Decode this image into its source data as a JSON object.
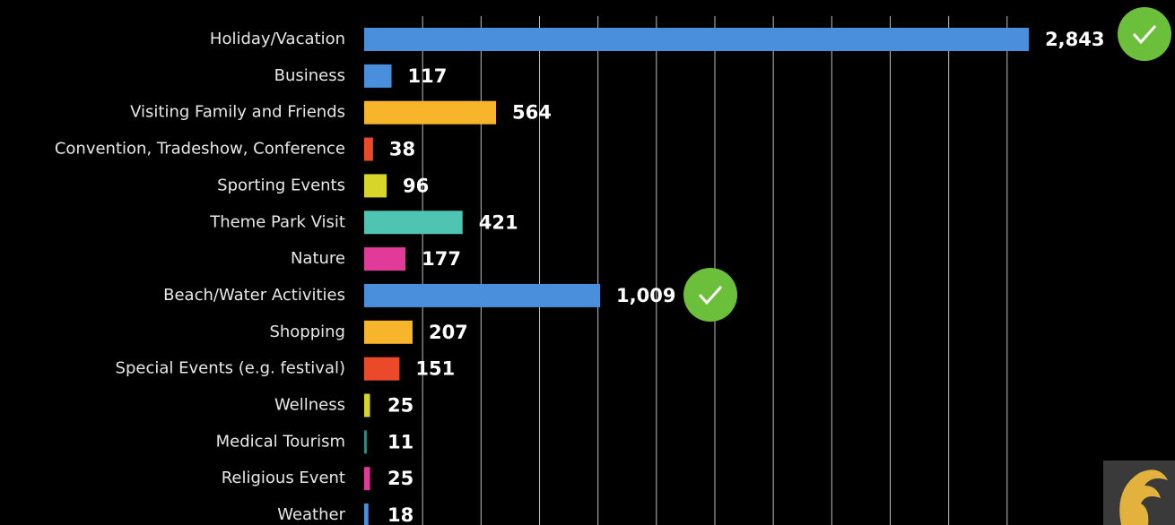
{
  "chart_data": {
    "type": "barh",
    "categories": [
      "Holiday/Vacation",
      "Business",
      "Visiting Family and Friends",
      "Convention, Tradeshow, Conference",
      "Sporting Events",
      "Theme Park Visit",
      "Nature",
      "Beach/Water Activities",
      "Shopping",
      "Special Events (e.g. festival)",
      "Wellness",
      "Medical Tourism",
      "Religious Event",
      "Weather"
    ],
    "values": [
      2843,
      117,
      564,
      38,
      96,
      421,
      177,
      1009,
      207,
      151,
      25,
      11,
      25,
      18
    ],
    "value_labels": [
      "2,843",
      "117",
      "564",
      "38",
      "96",
      "421",
      "177",
      "1,009",
      "207",
      "151",
      "25",
      "11",
      "25",
      "18"
    ],
    "colors": [
      "#4a8fdc",
      "#4a8fdc",
      "#f7b52c",
      "#ea4a2a",
      "#d7d52a",
      "#4fc4b2",
      "#e23a98",
      "#4a8fdc",
      "#f7b52c",
      "#ea4a2a",
      "#d7d52a",
      "#2f8f86",
      "#e23a98",
      "#4a8fdc"
    ],
    "xlim": [
      0,
      3000
    ],
    "xticks": [
      250,
      500,
      750,
      1000,
      1250,
      1500,
      1750,
      2000,
      2250,
      2500,
      2750
    ],
    "grid": true
  }
}
